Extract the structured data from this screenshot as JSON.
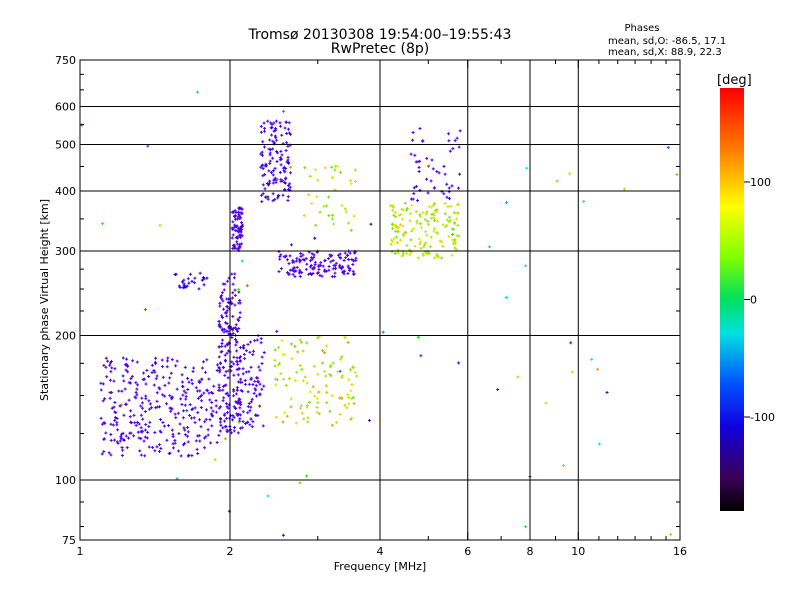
{
  "chart_data": {
    "type": "scatter",
    "title": "Tromsø 20130308 19:54:00–19:55:43",
    "subtitle": "RwPretec (8p)",
    "xlabel": "Frequency [MHz]",
    "ylabel": "Stationary phase Virtual Height [km]",
    "x_scale": "log",
    "y_scale": "log",
    "xlim": [
      1,
      16
    ],
    "ylim": [
      75,
      750
    ],
    "x_ticks": [
      1,
      2,
      4,
      6,
      8,
      10,
      16
    ],
    "x_tick_labels": [
      "1",
      "2",
      "4",
      "6",
      "8",
      "10",
      "16"
    ],
    "y_ticks": [
      75,
      100,
      200,
      300,
      400,
      500,
      600,
      750
    ],
    "y_tick_labels": [
      "75",
      "100",
      "200",
      "300",
      "400",
      "500",
      "600",
      "750"
    ],
    "grid": true,
    "legend": {
      "title": "Phases",
      "lines": [
        "mean, sd,O: -86.5, 17.1",
        "mean, sd,X:  88.9, 22.3"
      ],
      "position": "top-right"
    },
    "colorbar": {
      "label": "[deg]",
      "range": [
        -180,
        180
      ],
      "tick_values": [
        100,
        0,
        -100
      ],
      "tick_labels": [
        "100",
        "0",
        "-100"
      ],
      "colormap": "rainbow"
    },
    "clusters": [
      {
        "f": [
          1.1,
          1.9
        ],
        "h": [
          112,
          180
        ],
        "phase": [
          -110,
          -85
        ],
        "n": 320
      },
      {
        "f": [
          1.9,
          2.1
        ],
        "h": [
          125,
          270
        ],
        "phase": [
          -115,
          -90
        ],
        "n": 200
      },
      {
        "f": [
          2.05,
          2.35
        ],
        "h": [
          128,
          200
        ],
        "phase": [
          -110,
          -85
        ],
        "n": 90
      },
      {
        "f": [
          2.02,
          2.12
        ],
        "h": [
          300,
          370
        ],
        "phase": [
          -120,
          -95
        ],
        "n": 80
      },
      {
        "f": [
          1.55,
          1.8
        ],
        "h": [
          250,
          270
        ],
        "phase": [
          -95,
          -70
        ],
        "n": 25
      },
      {
        "f": [
          2.3,
          2.65
        ],
        "h": [
          380,
          560
        ],
        "phase": [
          -105,
          -80
        ],
        "n": 130
      },
      {
        "f": [
          2.45,
          3.6
        ],
        "h": [
          130,
          200
        ],
        "phase": [
          80,
          140
        ],
        "n": 110
      },
      {
        "f": [
          2.5,
          3.6
        ],
        "h": [
          265,
          300
        ],
        "phase": [
          -120,
          -95
        ],
        "n": 140
      },
      {
        "f": [
          2.8,
          3.6
        ],
        "h": [
          330,
          460
        ],
        "phase": [
          80,
          130
        ],
        "n": 35
      },
      {
        "f": [
          4.2,
          5.8
        ],
        "h": [
          290,
          380
        ],
        "phase": [
          85,
          125
        ],
        "n": 160
      },
      {
        "f": [
          4.6,
          5.8
        ],
        "h": [
          380,
          540
        ],
        "phase": [
          -110,
          -80
        ],
        "n": 50
      },
      {
        "f": [
          1.0,
          16.0
        ],
        "h": [
          76,
          650
        ],
        "phase": [
          -140,
          170
        ],
        "n": 60
      }
    ]
  }
}
